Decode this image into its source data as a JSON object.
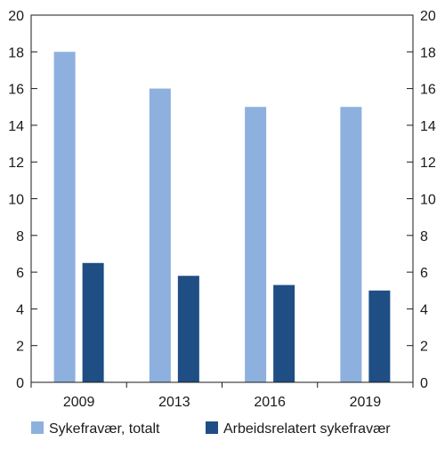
{
  "chart_data": {
    "type": "bar",
    "categories": [
      "2009",
      "2013",
      "2016",
      "2019"
    ],
    "series": [
      {
        "name": "Sykefravær, totalt",
        "values": [
          18,
          16,
          15,
          15
        ],
        "color": "#8db0de"
      },
      {
        "name": "Arbeidsrelatert sykefravær",
        "values": [
          6.5,
          5.8,
          5.3,
          5.0
        ],
        "color": "#1f4e85"
      }
    ],
    "title": "",
    "xlabel": "",
    "ylabel": "",
    "ylim": [
      0,
      20
    ],
    "yticks": [
      "0",
      "2",
      "4",
      "6",
      "8",
      "10",
      "12",
      "14",
      "16",
      "18",
      "20"
    ],
    "secondary_y_axis": true,
    "grid": false,
    "legend_position": "bottom"
  }
}
